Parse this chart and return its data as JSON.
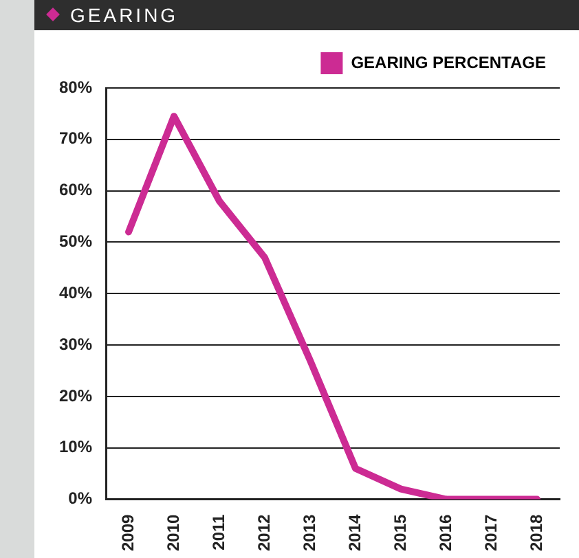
{
  "chart_data": {
    "type": "line",
    "title": "GEARING",
    "categories": [
      "2009",
      "2010",
      "2011",
      "2012",
      "2013",
      "2014",
      "2015",
      "2016",
      "2017",
      "2018"
    ],
    "series": [
      {
        "name": "GEARING PERCENTAGE",
        "color": "#cc2b93",
        "values": [
          52,
          74.5,
          58,
          47,
          27,
          6,
          2,
          0,
          0,
          0
        ]
      }
    ],
    "ylim": [
      0,
      80
    ],
    "yticks": [
      {
        "value": 0,
        "label": "0%"
      },
      {
        "value": 10,
        "label": "10%"
      },
      {
        "value": 20,
        "label": "20%"
      },
      {
        "value": 30,
        "label": "30%"
      },
      {
        "value": 40,
        "label": "40%"
      },
      {
        "value": 50,
        "label": "50%"
      },
      {
        "value": 60,
        "label": "60%"
      },
      {
        "value": 70,
        "label": "70%"
      },
      {
        "value": 80,
        "label": "80%"
      }
    ],
    "grid": "y",
    "legend": "top right",
    "marker": "none"
  }
}
